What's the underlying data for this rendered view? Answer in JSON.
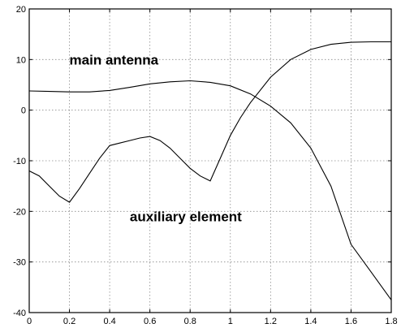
{
  "chart_data": {
    "type": "line",
    "xlim": [
      0,
      1.8
    ],
    "ylim": [
      -40,
      20
    ],
    "x_ticks": [
      "0",
      "0.2",
      "0.4",
      "0.6",
      "0.8",
      "1",
      "1.2",
      "1.4",
      "1.6",
      "1.8"
    ],
    "x_tick_values": [
      0,
      0.2,
      0.4,
      0.6,
      0.8,
      1.0,
      1.2,
      1.4,
      1.6,
      1.8
    ],
    "y_ticks": [
      "-40",
      "-30",
      "-20",
      "-10",
      "0",
      "10",
      "20"
    ],
    "y_tick_values": [
      -40,
      -30,
      -20,
      -10,
      0,
      10,
      20
    ],
    "grid": true,
    "annotations": [
      {
        "text": "main antenna",
        "x": 0.2,
        "y": 10
      },
      {
        "text": "auxiliary element",
        "x": 0.5,
        "y": -21
      }
    ],
    "series": [
      {
        "x": [
          0,
          0.1,
          0.2,
          0.3,
          0.4,
          0.5,
          0.6,
          0.7,
          0.8,
          0.9,
          1.0,
          1.1,
          1.2,
          1.3,
          1.4,
          1.5,
          1.6,
          1.7,
          1.8
        ],
        "values": [
          3.8,
          3.7,
          3.6,
          3.6,
          3.9,
          4.5,
          5.2,
          5.6,
          5.8,
          5.5,
          4.8,
          3.2,
          0.8,
          -2.5,
          -7.5,
          -15.0,
          -26.5,
          -32.0,
          -37.5
        ]
      },
      {
        "x": [
          0,
          0.05,
          0.1,
          0.15,
          0.2,
          0.25,
          0.3,
          0.35,
          0.4,
          0.45,
          0.5,
          0.55,
          0.6,
          0.65,
          0.7,
          0.75,
          0.8,
          0.85,
          0.9,
          0.95,
          1.0,
          1.05,
          1.1,
          1.2,
          1.3,
          1.4,
          1.5,
          1.6,
          1.7,
          1.8
        ],
        "values": [
          -12.0,
          -13.0,
          -15.0,
          -17.0,
          -18.2,
          -15.5,
          -12.5,
          -9.5,
          -7.0,
          -6.5,
          -6.0,
          -5.5,
          -5.2,
          -6.0,
          -7.5,
          -9.5,
          -11.5,
          -13.0,
          -14.0,
          -9.5,
          -5.0,
          -1.5,
          1.5,
          6.5,
          10.0,
          12.0,
          13.0,
          13.4,
          13.5,
          13.5
        ]
      }
    ]
  }
}
